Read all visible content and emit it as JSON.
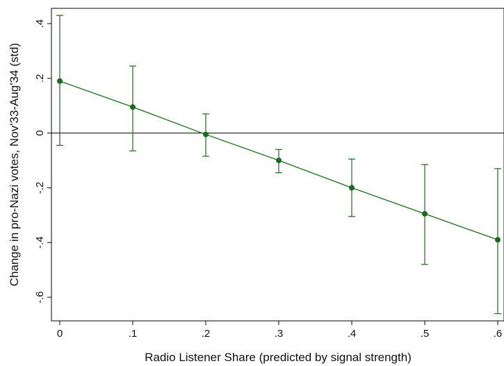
{
  "chart_data": {
    "type": "line",
    "title": "",
    "xlabel": "Radio Listener Share (predicted by signal strength)",
    "ylabel": "Change in pro-Nazi votes, Nov'33-Aug'34 (std)",
    "xlim": [
      0,
      0.6
    ],
    "ylim": [
      -0.69,
      0.45
    ],
    "xticks": [
      {
        "value": 0,
        "label": "0"
      },
      {
        "value": 0.1,
        "label": ".1"
      },
      {
        "value": 0.2,
        "label": ".2"
      },
      {
        "value": 0.3,
        "label": ".3"
      },
      {
        "value": 0.4,
        "label": ".4"
      },
      {
        "value": 0.5,
        "label": ".5"
      },
      {
        "value": 0.6,
        "label": ".6"
      }
    ],
    "yticks": [
      {
        "value": 0.4,
        "label": ".4"
      },
      {
        "value": 0.2,
        "label": ".2"
      },
      {
        "value": 0,
        "label": "0"
      },
      {
        "value": -0.2,
        "label": "-.2"
      },
      {
        "value": -0.4,
        "label": "-.4"
      },
      {
        "value": -0.6,
        "label": "-.6"
      }
    ],
    "reference_line_y": 0,
    "grid": false,
    "legend": "none",
    "color": "#1a6b1a",
    "series": [
      {
        "x": [
          0,
          0.1,
          0.2,
          0.3,
          0.4,
          0.5,
          0.6
        ],
        "y": [
          0.19,
          0.095,
          -0.005,
          -0.1,
          -0.2,
          -0.295,
          -0.39
        ],
        "ci_low": [
          -0.045,
          -0.065,
          -0.085,
          -0.145,
          -0.305,
          -0.48,
          -0.66
        ],
        "ci_high": [
          0.43,
          0.245,
          0.07,
          -0.06,
          -0.095,
          -0.115,
          -0.13
        ]
      }
    ]
  }
}
